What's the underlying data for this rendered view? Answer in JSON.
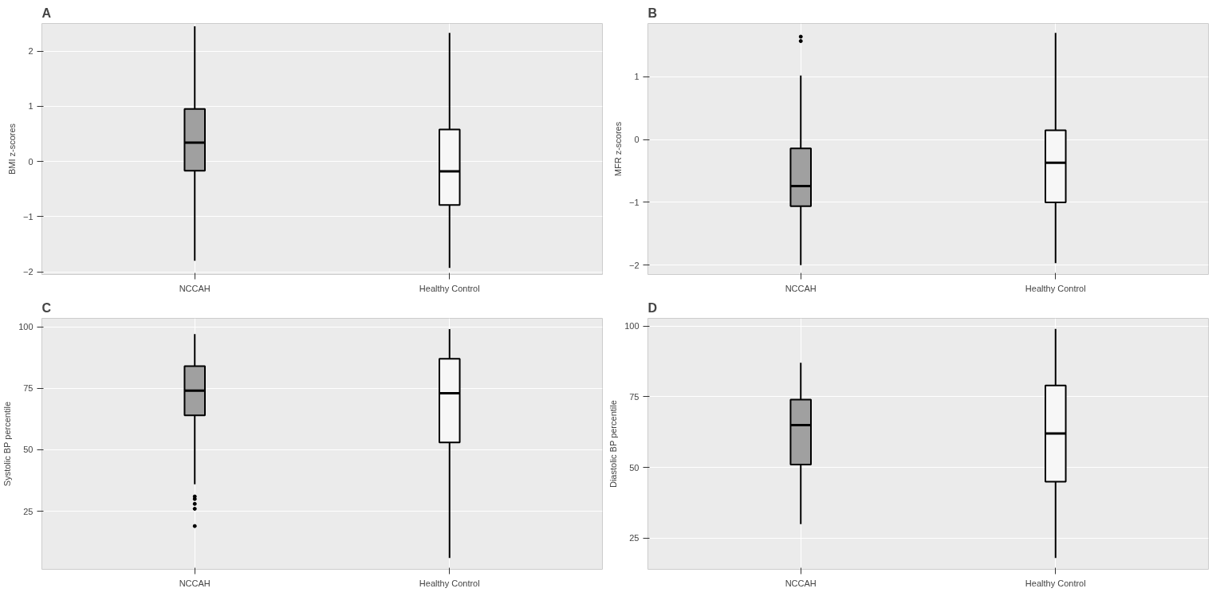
{
  "chart_data": [
    {
      "type": "box",
      "title": "A",
      "ylabel": "BMI z-scores",
      "categories": [
        "NCCAH",
        "Healthy Control"
      ],
      "colors": [
        "#a0a0a0",
        "#f7f7f7"
      ],
      "ylim": [
        -2.05,
        2.5
      ],
      "yticks": [
        -2,
        -1,
        0,
        1,
        2
      ],
      "grid": true,
      "boxes": [
        {
          "low": -1.8,
          "q1": -0.17,
          "median": 0.34,
          "q3": 0.95,
          "high": 2.45
        },
        {
          "low": -1.93,
          "q1": -0.79,
          "median": -0.18,
          "q3": 0.58,
          "high": 2.33
        }
      ]
    },
    {
      "type": "box",
      "title": "B",
      "ylabel": "MFR z-scores",
      "categories": [
        "NCCAH",
        "Healthy Control"
      ],
      "colors": [
        "#a0a0a0",
        "#f7f7f7"
      ],
      "ylim": [
        -2.15,
        1.85
      ],
      "yticks": [
        -2,
        -1,
        0,
        1
      ],
      "grid": true,
      "boxes": [
        {
          "low": -2.0,
          "q1": -1.06,
          "median": -0.74,
          "q3": -0.14,
          "high": 1.02,
          "outliers": [
            1.57,
            1.64
          ]
        },
        {
          "low": -1.97,
          "q1": -1.0,
          "median": -0.37,
          "q3": 0.15,
          "high": 1.7
        }
      ]
    },
    {
      "type": "box",
      "title": "C",
      "ylabel": "Systolic BP percentile",
      "categories": [
        "NCCAH",
        "Healthy Control"
      ],
      "colors": [
        "#a0a0a0",
        "#f7f7f7"
      ],
      "ylim": [
        1.4,
        103.4
      ],
      "yticks": [
        25,
        50,
        75,
        100
      ],
      "grid": true,
      "boxes": [
        {
          "low": 36,
          "q1": 64,
          "median": 74,
          "q3": 84,
          "high": 97,
          "outliers": [
            31,
            30,
            28,
            26,
            19
          ]
        },
        {
          "low": 6,
          "q1": 53,
          "median": 73,
          "q3": 87,
          "high": 99
        }
      ]
    },
    {
      "type": "box",
      "title": "D",
      "ylabel": "Diastolic BP percentile",
      "categories": [
        "NCCAH",
        "Healthy Control"
      ],
      "colors": [
        "#a0a0a0",
        "#f7f7f7"
      ],
      "ylim": [
        14,
        102.7
      ],
      "yticks": [
        25,
        50,
        75,
        100
      ],
      "grid": true,
      "boxes": [
        {
          "low": 30,
          "q1": 51,
          "median": 65,
          "q3": 74,
          "high": 87
        },
        {
          "low": 18,
          "q1": 45,
          "median": 62,
          "q3": 79,
          "high": 99
        }
      ]
    }
  ]
}
